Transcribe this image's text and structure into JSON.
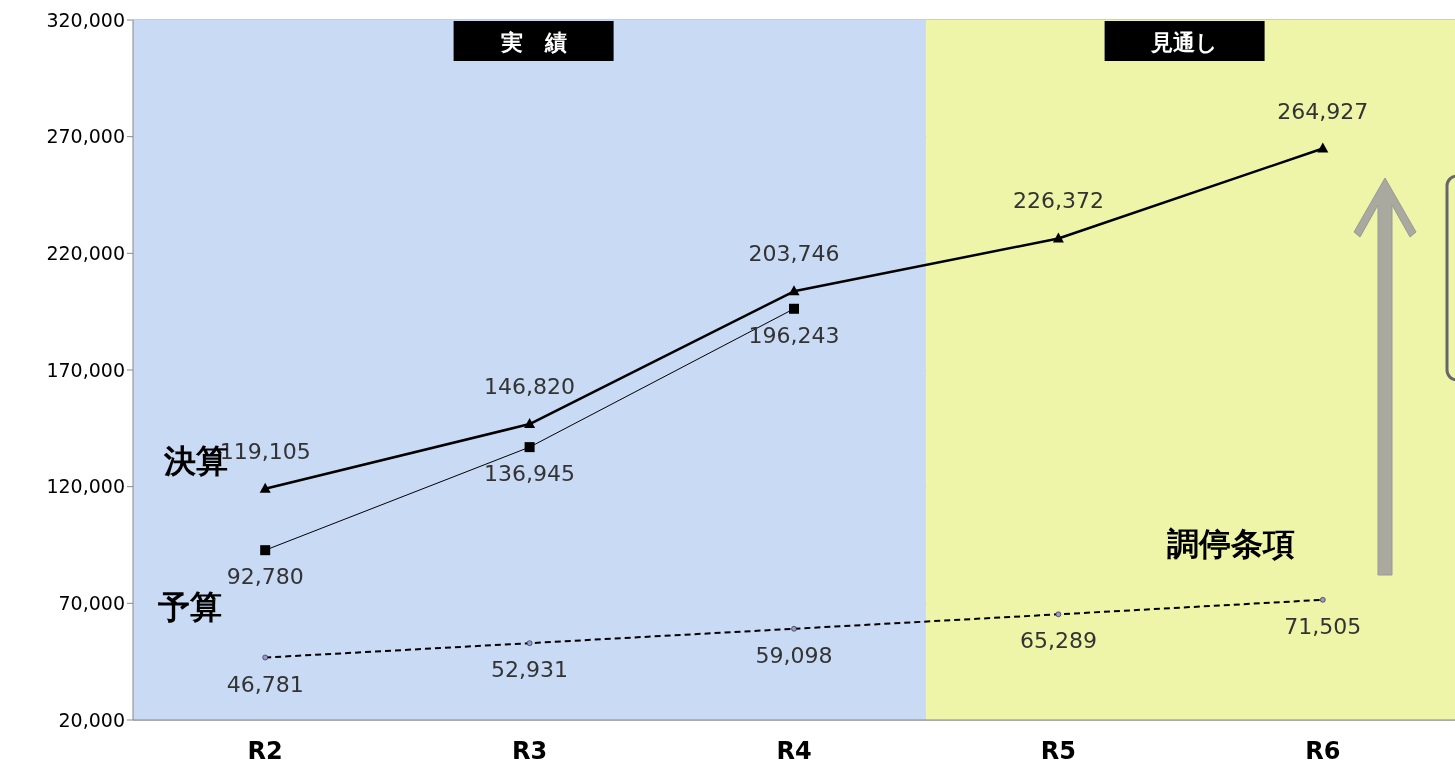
{
  "chart_data": {
    "type": "line",
    "categories": [
      "R2",
      "R3",
      "R4",
      "R5",
      "R6"
    ],
    "series": [
      {
        "color": "#000000",
        "marker": "triangle",
        "line_style": "solid",
        "values": [
          119105,
          146820,
          203746,
          226372,
          264927
        ],
        "value_labels": [
          "119,105",
          "146,820",
          "203,746",
          "226,372",
          "264,927"
        ]
      },
      {
        "color": "#000000",
        "marker": "square",
        "line_style": "solid",
        "values": [
          92780,
          136945,
          196243,
          null,
          null
        ],
        "value_labels": [
          "92,780",
          "136,945",
          "196,243",
          null,
          null
        ]
      },
      {
        "color": "#000000",
        "marker": "circle",
        "line_style": "dashed",
        "values": [
          46781,
          52931,
          59098,
          65289,
          71505
        ],
        "value_labels": [
          "46,781",
          "52,931",
          "59,098",
          "65,289",
          "71,505"
        ]
      }
    ],
    "ylim": [
      20000,
      320000
    ],
    "yticks": [
      {
        "value": 20000,
        "label": "20,000"
      },
      {
        "value": 70000,
        "label": "70,000"
      },
      {
        "value": 120000,
        "label": "120,000"
      },
      {
        "value": 170000,
        "label": "170,000"
      },
      {
        "value": 220000,
        "label": "220,000"
      },
      {
        "value": 270000,
        "label": "270,000"
      },
      {
        "value": 320000,
        "label": "320,000"
      }
    ],
    "grid": "y",
    "bands": [
      {
        "axis": "x",
        "from": "R2",
        "to": "R4",
        "label": "実　績",
        "color": "#c9daf5"
      },
      {
        "axis": "x",
        "from": "R5",
        "to": "R6",
        "label": "見通し",
        "color": "#eef5a8"
      }
    ],
    "annotations": [
      "決算",
      "予算",
      "調停条項"
    ]
  }
}
